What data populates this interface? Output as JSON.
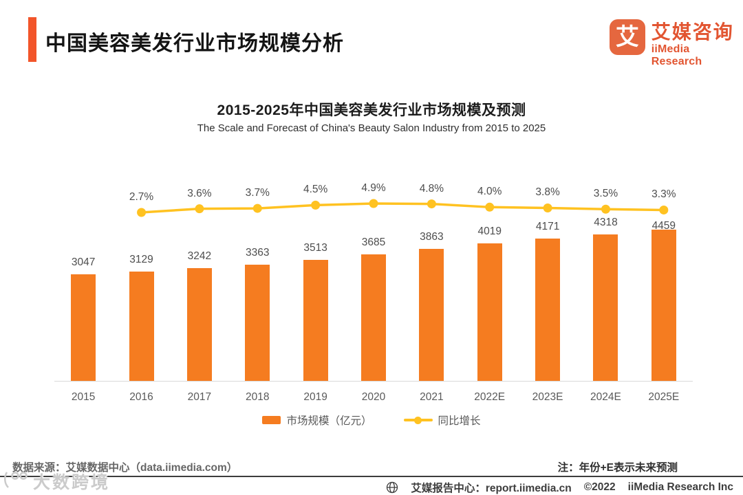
{
  "header": {
    "title": "中国美容美发行业市场规模分析",
    "logo": {
      "glyph": "艾",
      "name_cn": "艾媒咨询",
      "name_en": "iiMedia Research"
    }
  },
  "chart_data": {
    "type": "bar",
    "title": "2015-2025年中国美容美发行业市场规模及预测",
    "subtitle": "The Scale and Forecast of China's Beauty Salon Industry from 2015 to 2025",
    "categories": [
      "2015",
      "2016",
      "2017",
      "2018",
      "2019",
      "2020",
      "2021",
      "2022E",
      "2023E",
      "2024E",
      "2025E"
    ],
    "series": [
      {
        "name": "市场规模（亿元）",
        "type": "bar",
        "color": "#f57c20",
        "values": [
          3047,
          3129,
          3242,
          3363,
          3513,
          3685,
          3863,
          4019,
          4171,
          4318,
          4459
        ]
      },
      {
        "name": "同比增长",
        "type": "line",
        "color": "#ffc221",
        "unit": "%",
        "values": [
          null,
          2.7,
          3.6,
          3.7,
          4.5,
          4.9,
          4.8,
          4.0,
          3.8,
          3.5,
          3.3
        ]
      }
    ],
    "value_labels": true,
    "grid": false,
    "legend_position": "bottom",
    "ylabel": "",
    "xlabel": ""
  },
  "footer": {
    "source": "数据来源：艾媒数据中心（data.iimedia.com）",
    "note": "注：年份+E表示未来预测",
    "report_center": "艾媒报告中心：report.iimedia.cn",
    "copyright": "©2022",
    "company": "iiMedia Research Inc"
  },
  "watermark": {
    "text": "大数跨境"
  }
}
